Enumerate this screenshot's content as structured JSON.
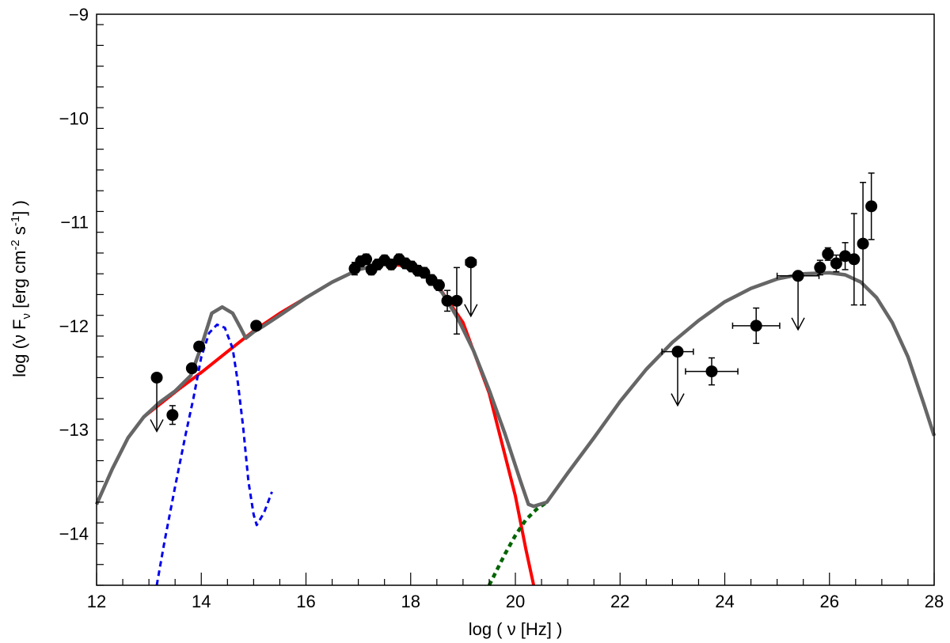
{
  "chart_data": {
    "type": "scatter",
    "xlabel": "log ( ν [Hz] )",
    "ylabel": "log (ν F",
    "ylabel_sub": "ν",
    "ylabel_units": " [erg cm",
    "ylabel_exp1": "-2",
    "ylabel_s": " s",
    "ylabel_exp2": "-1",
    "ylabel_close": "] )",
    "xlim": [
      12,
      28
    ],
    "ylim": [
      -14.5,
      -9
    ],
    "x_ticks": [
      12,
      14,
      16,
      18,
      20,
      22,
      24,
      26,
      28
    ],
    "x_tick_labels": [
      "12",
      "14",
      "16",
      "18",
      "20",
      "22",
      "24",
      "26",
      "28"
    ],
    "y_ticks": [
      -14,
      -13,
      -12,
      -11,
      -10,
      -9
    ],
    "y_tick_labels": [
      "−14",
      "−13",
      "−12",
      "−11",
      "−10",
      "−9"
    ],
    "colors": {
      "total": "#666666",
      "synchrotron": "#ff0000",
      "disk": "#0000ee",
      "compton": "#006400",
      "points": "#000000"
    },
    "points": [
      {
        "x": 13.45,
        "y": -12.86,
        "yerr": 0.09
      },
      {
        "x": 13.82,
        "y": -12.41
      },
      {
        "x": 13.96,
        "y": -12.2
      },
      {
        "x": 15.05,
        "y": -12.0
      },
      {
        "x": 16.93,
        "y": -11.45,
        "yerr": 0.06
      },
      {
        "x": 17.05,
        "y": -11.38,
        "yerr": 0.05
      },
      {
        "x": 17.15,
        "y": -11.36,
        "yerr": 0.05
      },
      {
        "x": 17.25,
        "y": -11.46,
        "yerr": 0.05
      },
      {
        "x": 17.37,
        "y": -11.41,
        "yerr": 0.05
      },
      {
        "x": 17.5,
        "y": -11.37,
        "yerr": 0.05
      },
      {
        "x": 17.63,
        "y": -11.41,
        "yerr": 0.05
      },
      {
        "x": 17.78,
        "y": -11.36,
        "yerr": 0.05
      },
      {
        "x": 17.9,
        "y": -11.4,
        "yerr": 0.05
      },
      {
        "x": 18.02,
        "y": -11.43,
        "yerr": 0.05
      },
      {
        "x": 18.14,
        "y": -11.47,
        "yerr": 0.05
      },
      {
        "x": 18.26,
        "y": -11.49,
        "yerr": 0.05
      },
      {
        "x": 18.4,
        "y": -11.56,
        "yerr": 0.05
      },
      {
        "x": 18.54,
        "y": -11.61,
        "yerr": 0.05
      },
      {
        "x": 18.7,
        "y": -11.76,
        "yerr": 0.1
      },
      {
        "x": 18.88,
        "y": -11.76,
        "yerr": 0.32
      },
      {
        "x": 23.75,
        "y": -12.44,
        "xerr": 0.5,
        "yerr": 0.13
      },
      {
        "x": 24.6,
        "y": -12.0,
        "xerr": 0.45,
        "yerr": 0.17
      },
      {
        "x": 25.82,
        "y": -11.44,
        "yerr": 0.07
      },
      {
        "x": 25.97,
        "y": -11.31,
        "yerr": 0.06
      },
      {
        "x": 26.13,
        "y": -11.4,
        "yerr": 0.08
      },
      {
        "x": 26.3,
        "y": -11.33,
        "yerr": 0.13
      },
      {
        "x": 26.47,
        "y": -11.36,
        "yerr": 0.44
      },
      {
        "x": 26.64,
        "y": -11.21,
        "yerr": 0.59
      },
      {
        "x": 26.8,
        "y": -10.85,
        "yerr": 0.32
      }
    ],
    "upper_limits": [
      {
        "x": 13.15,
        "y": -12.5
      },
      {
        "x": 19.15,
        "y": -11.39,
        "xerr": 0.1
      },
      {
        "x": 23.1,
        "y": -12.25,
        "xerr": 0.3
      },
      {
        "x": 25.4,
        "y": -11.52,
        "xerr": 0.4
      }
    ],
    "curves": [
      {
        "name": "total",
        "style": "solid-thick",
        "x": [
          12.0,
          12.3,
          12.6,
          12.9,
          13.2,
          13.5,
          13.8,
          14.0,
          14.2,
          14.4,
          14.6,
          14.75,
          14.85,
          15.0,
          15.2,
          15.5,
          16.0,
          16.5,
          17.0,
          17.5,
          17.8,
          18.0,
          18.3,
          18.6,
          18.9,
          19.2,
          19.5,
          19.8,
          20.1,
          20.25,
          20.35,
          20.6,
          21.0,
          21.5,
          22.0,
          22.5,
          23.0,
          23.5,
          24.0,
          24.5,
          25.0,
          25.5,
          26.0,
          26.3,
          26.6,
          26.9,
          27.2,
          27.5,
          27.8,
          28.0
        ],
        "y": [
          -13.72,
          -13.38,
          -13.08,
          -12.88,
          -12.74,
          -12.63,
          -12.48,
          -12.2,
          -11.88,
          -11.82,
          -11.88,
          -12.02,
          -12.12,
          -12.06,
          -12.0,
          -11.9,
          -11.73,
          -11.58,
          -11.46,
          -11.4,
          -11.4,
          -11.43,
          -11.52,
          -11.68,
          -11.93,
          -12.24,
          -12.62,
          -13.04,
          -13.5,
          -13.72,
          -13.74,
          -13.7,
          -13.42,
          -13.08,
          -12.73,
          -12.42,
          -12.16,
          -11.95,
          -11.77,
          -11.64,
          -11.55,
          -11.5,
          -11.49,
          -11.51,
          -11.58,
          -11.73,
          -11.97,
          -12.3,
          -12.75,
          -13.06
        ]
      },
      {
        "name": "synchrotron",
        "style": "solid",
        "x": [
          12.0,
          12.3,
          12.6,
          12.9,
          13.2,
          13.6,
          14.0,
          14.5,
          15.0,
          15.5,
          16.0,
          16.5,
          17.0,
          17.5,
          18.0,
          18.5,
          19.0,
          19.5,
          20.0,
          20.2,
          20.35
        ],
        "y": [
          -13.72,
          -13.38,
          -13.08,
          -12.88,
          -12.76,
          -12.6,
          -12.45,
          -12.25,
          -12.05,
          -11.88,
          -11.73,
          -11.58,
          -11.46,
          -11.4,
          -11.43,
          -11.6,
          -11.97,
          -12.65,
          -13.64,
          -14.15,
          -14.52
        ]
      },
      {
        "name": "disk",
        "style": "dashed",
        "x": [
          13.15,
          13.3,
          13.5,
          13.7,
          13.85,
          14.0,
          14.15,
          14.3,
          14.45,
          14.6,
          14.7,
          14.8,
          14.9,
          15.0,
          15.06,
          15.2,
          15.35
        ],
        "y": [
          -14.5,
          -14.07,
          -13.55,
          -13.05,
          -12.7,
          -12.3,
          -12.07,
          -11.99,
          -12.02,
          -12.22,
          -12.55,
          -12.98,
          -13.5,
          -13.82,
          -13.92,
          -13.8,
          -13.6
        ]
      },
      {
        "name": "compton",
        "style": "dotted",
        "x": [
          19.5,
          19.8,
          20.0,
          20.2,
          20.4,
          20.6
        ],
        "y": [
          -14.5,
          -14.2,
          -14.02,
          -13.87,
          -13.77,
          -13.7
        ]
      }
    ]
  }
}
